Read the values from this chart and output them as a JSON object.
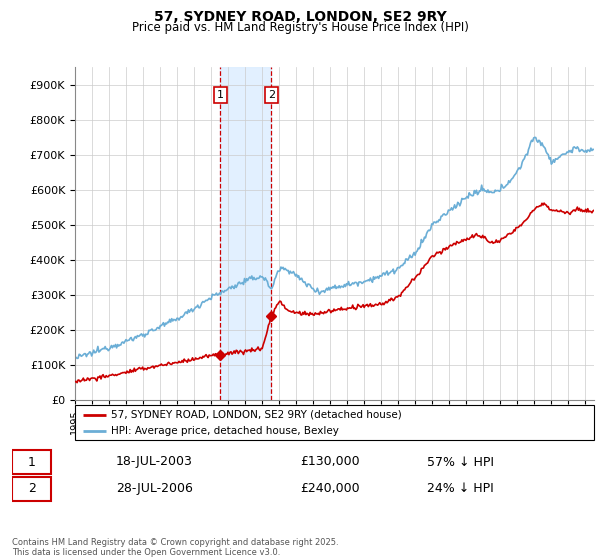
{
  "title": "57, SYDNEY ROAD, LONDON, SE2 9RY",
  "subtitle": "Price paid vs. HM Land Registry's House Price Index (HPI)",
  "legend_line1": "57, SYDNEY ROAD, LONDON, SE2 9RY (detached house)",
  "legend_line2": "HPI: Average price, detached house, Bexley",
  "transaction1_date": "18-JUL-2003",
  "transaction1_price": 130000,
  "transaction1_label": "57% ↓ HPI",
  "transaction2_date": "28-JUL-2006",
  "transaction2_price": 240000,
  "transaction2_label": "24% ↓ HPI",
  "footer": "Contains HM Land Registry data © Crown copyright and database right 2025.\nThis data is licensed under the Open Government Licence v3.0.",
  "hpi_color": "#6baed6",
  "price_color": "#cc0000",
  "shade_color": "#ddeeff",
  "ylim": [
    0,
    950000
  ],
  "yticks": [
    0,
    100000,
    200000,
    300000,
    400000,
    500000,
    600000,
    700000,
    800000,
    900000
  ],
  "xmin": 1995,
  "xmax": 2025.5,
  "t1_x": 2003.54,
  "t2_x": 2006.54
}
